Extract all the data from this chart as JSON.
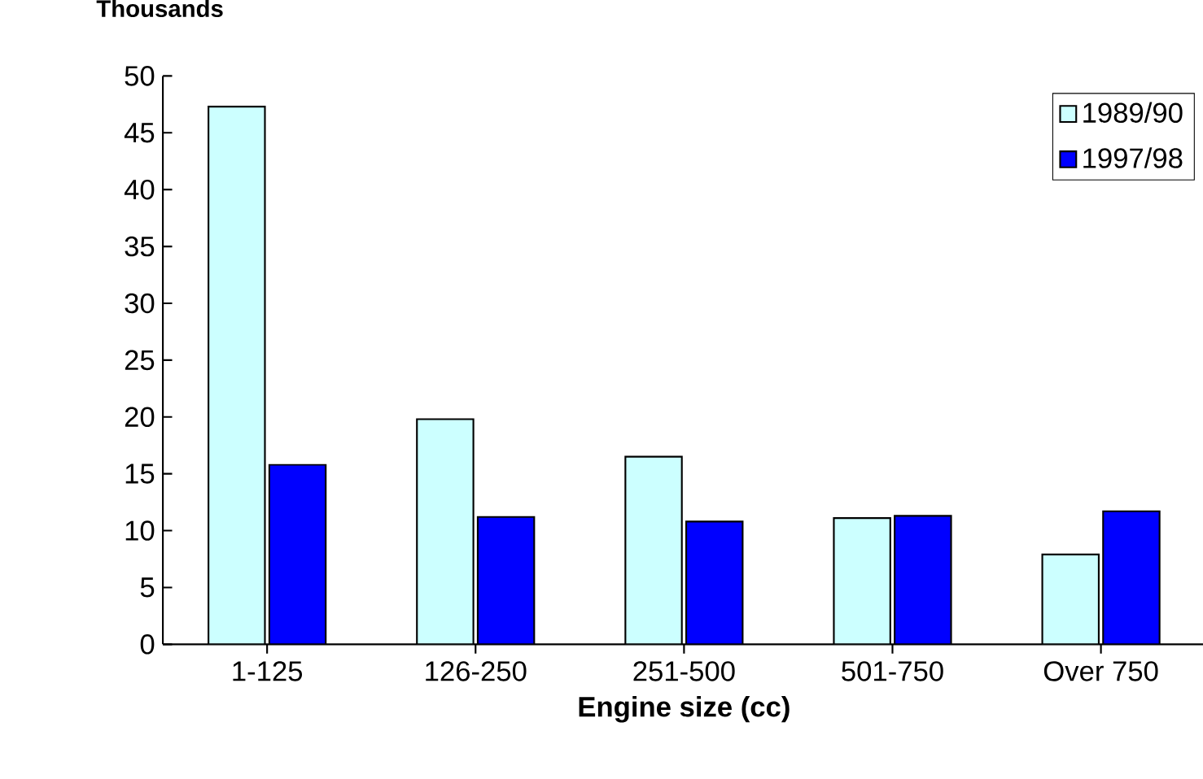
{
  "chart_data": {
    "type": "bar",
    "ylabel": "Thousands",
    "xlabel": "Engine size (cc)",
    "categories": [
      "1-125",
      "126-250",
      "251-500",
      "501-750",
      "Over 750"
    ],
    "series": [
      {
        "name": "1989/90",
        "color": "#ccffff",
        "values": [
          47.3,
          19.8,
          16.5,
          11.1,
          7.9
        ]
      },
      {
        "name": "1997/98",
        "color": "#0000ff",
        "values": [
          15.8,
          11.2,
          10.8,
          11.3,
          11.7
        ]
      }
    ],
    "ylim": [
      0,
      50
    ],
    "yticks": [
      0,
      5,
      10,
      15,
      20,
      25,
      30,
      35,
      40,
      45,
      50
    ],
    "grid": false,
    "legend": "top right"
  }
}
